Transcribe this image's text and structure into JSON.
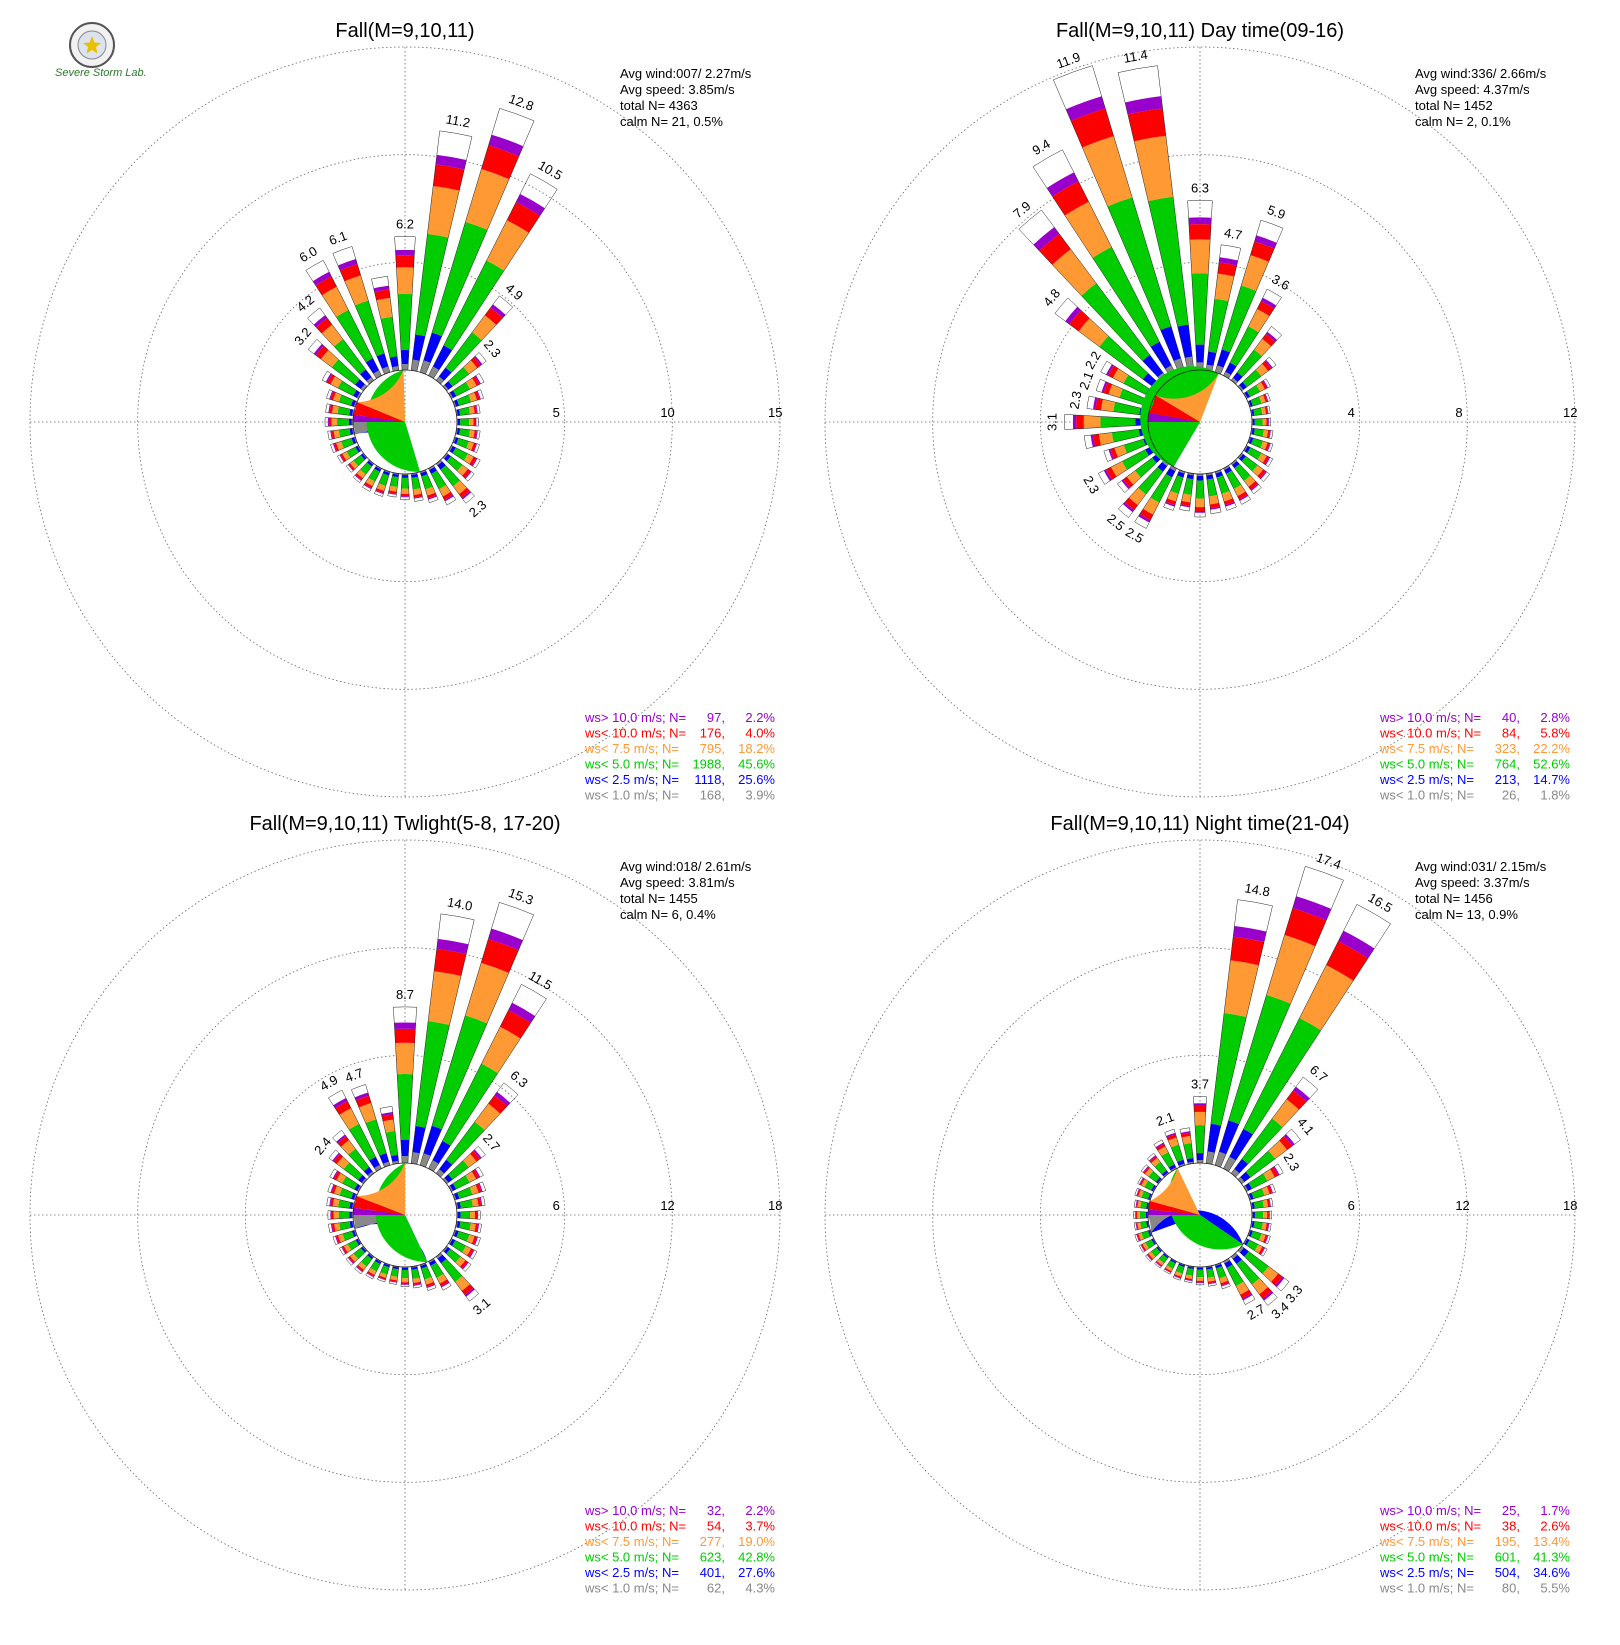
{
  "colors": {
    "gt10": "#9900cc",
    "lt10": "#ff0000",
    "lt7_5": "#ff9933",
    "lt5": "#00cc00",
    "lt2_5": "#0000ff",
    "lt1": "#888888"
  },
  "logo": {
    "text": "Severe Storm Lab."
  },
  "chart_data": [
    {
      "type": "windrose",
      "title": "Fall(M=9,10,11)",
      "stats": {
        "avg_wind": "Avg wind:007/ 2.27m/s",
        "avg_speed": "Avg speed: 3.85m/s",
        "total": "total N=        4363",
        "calm": "calm N=      21,   0.5%"
      },
      "rings": [
        5,
        10,
        15
      ],
      "ring_labels": [
        "5",
        "10",
        "15"
      ],
      "pie": [
        3.9,
        25.6,
        45.6,
        18.2,
        4.0,
        2.2
      ],
      "dirs": [
        {
          "d": 0,
          "p": 6.2,
          "l": "6.2"
        },
        {
          "d": 10,
          "p": 11.2,
          "l": "11.2"
        },
        {
          "d": 20,
          "p": 12.8,
          "l": "12.8"
        },
        {
          "d": 30,
          "p": 10.5,
          "l": "10.5"
        },
        {
          "d": 40,
          "p": 4.9,
          "l": "4.9"
        },
        {
          "d": 50,
          "p": 2.3,
          "l": "2.3"
        },
        {
          "d": 60,
          "p": 1.7
        },
        {
          "d": 70,
          "p": 1.4
        },
        {
          "d": 80,
          "p": 1.1
        },
        {
          "d": 90,
          "p": 1.0
        },
        {
          "d": 100,
          "p": 1.1
        },
        {
          "d": 110,
          "p": 1.2
        },
        {
          "d": 120,
          "p": 1.5
        },
        {
          "d": 130,
          "p": 1.6
        },
        {
          "d": 140,
          "p": 2.3,
          "l": "2.3"
        },
        {
          "d": 150,
          "p": 1.9
        },
        {
          "d": 160,
          "p": 1.5
        },
        {
          "d": 170,
          "p": 1.3
        },
        {
          "d": 180,
          "p": 1.2
        },
        {
          "d": 190,
          "p": 1.1
        },
        {
          "d": 200,
          "p": 1.2
        },
        {
          "d": 210,
          "p": 1.2
        },
        {
          "d": 220,
          "p": 1.1
        },
        {
          "d": 230,
          "p": 1.0
        },
        {
          "d": 240,
          "p": 1.1
        },
        {
          "d": 250,
          "p": 1.2
        },
        {
          "d": 260,
          "p": 1.2
        },
        {
          "d": 270,
          "p": 1.3
        },
        {
          "d": 280,
          "p": 1.3
        },
        {
          "d": 290,
          "p": 1.4
        },
        {
          "d": 300,
          "p": 1.9
        },
        {
          "d": 310,
          "p": 3.2,
          "l": "3.2"
        },
        {
          "d": 320,
          "p": 4.2,
          "l": "4.2"
        },
        {
          "d": 330,
          "p": 6.0,
          "l": "6.0"
        },
        {
          "d": 340,
          "p": 6.1,
          "l": "6.1"
        },
        {
          "d": 350,
          "p": 4.4
        }
      ],
      "legend": [
        {
          "label": "ws> 10.0 m/s; N=",
          "n": "97",
          "pct": "2.2%",
          "color_key": "gt10"
        },
        {
          "label": "ws< 10.0 m/s; N=",
          "n": "176",
          "pct": "4.0%",
          "color_key": "lt10"
        },
        {
          "label": "ws<  7.5 m/s; N=",
          "n": "795",
          "pct": "18.2%",
          "color_key": "lt7_5"
        },
        {
          "label": "ws<  5.0 m/s; N=",
          "n": "1988",
          "pct": "45.6%",
          "color_key": "lt5"
        },
        {
          "label": "ws<  2.5 m/s; N=",
          "n": "1118",
          "pct": "25.6%",
          "color_key": "lt2_5"
        },
        {
          "label": "ws<  1.0 m/s; N=",
          "n": "168",
          "pct": "3.9%",
          "color_key": "lt1"
        }
      ]
    },
    {
      "type": "windrose",
      "title": "Fall(M=9,10,11) Day time(09-16)",
      "stats": {
        "avg_wind": "Avg wind:336/ 2.66m/s",
        "avg_speed": "Avg speed: 4.37m/s",
        "total": "total N=        1452",
        "calm": "calm N=       2,   0.1%"
      },
      "rings": [
        4,
        8,
        12
      ],
      "ring_labels": [
        "4",
        "8",
        "12"
      ],
      "pie": [
        1.8,
        14.7,
        52.6,
        22.2,
        5.8,
        2.8
      ],
      "dirs": [
        {
          "d": 0,
          "p": 6.3,
          "l": "6.3"
        },
        {
          "d": 10,
          "p": 4.7,
          "l": "4.7"
        },
        {
          "d": 20,
          "p": 5.9,
          "l": "5.9"
        },
        {
          "d": 30,
          "p": 3.6,
          "l": "3.6"
        },
        {
          "d": 40,
          "p": 2.5
        },
        {
          "d": 50,
          "p": 1.6
        },
        {
          "d": 60,
          "p": 1.0
        },
        {
          "d": 70,
          "p": 0.8
        },
        {
          "d": 80,
          "p": 0.7
        },
        {
          "d": 90,
          "p": 0.7
        },
        {
          "d": 100,
          "p": 0.8
        },
        {
          "d": 110,
          "p": 0.9
        },
        {
          "d": 120,
          "p": 1.1
        },
        {
          "d": 130,
          "p": 1.3
        },
        {
          "d": 140,
          "p": 1.4
        },
        {
          "d": 150,
          "p": 1.5
        },
        {
          "d": 160,
          "p": 1.5
        },
        {
          "d": 170,
          "p": 1.5
        },
        {
          "d": 180,
          "p": 1.6
        },
        {
          "d": 190,
          "p": 1.4
        },
        {
          "d": 200,
          "p": 1.5
        },
        {
          "d": 210,
          "p": 2.5,
          "l": "2.5"
        },
        {
          "d": 220,
          "p": 2.5,
          "l": "2.5"
        },
        {
          "d": 230,
          "p": 1.9
        },
        {
          "d": 240,
          "p": 2.3,
          "l": "2.3"
        },
        {
          "d": 250,
          "p": 1.8
        },
        {
          "d": 260,
          "p": 2.4
        },
        {
          "d": 270,
          "p": 3.1,
          "l": "3.1"
        },
        {
          "d": 280,
          "p": 2.3,
          "l": "2.3"
        },
        {
          "d": 290,
          "p": 2.1,
          "l": "2.1"
        },
        {
          "d": 300,
          "p": 2.2,
          "l": "2.2"
        },
        {
          "d": 310,
          "p": 4.8,
          "l": "4.8"
        },
        {
          "d": 320,
          "p": 7.9,
          "l": "7.9"
        },
        {
          "d": 330,
          "p": 9.4,
          "l": "9.4"
        },
        {
          "d": 340,
          "p": 11.9,
          "l": "11.9"
        },
        {
          "d": 350,
          "p": 11.4,
          "l": "11.4"
        }
      ],
      "legend": [
        {
          "label": "ws> 10.0 m/s; N=",
          "n": "40",
          "pct": "2.8%",
          "color_key": "gt10"
        },
        {
          "label": "ws< 10.0 m/s; N=",
          "n": "84",
          "pct": "5.8%",
          "color_key": "lt10"
        },
        {
          "label": "ws<  7.5 m/s; N=",
          "n": "323",
          "pct": "22.2%",
          "color_key": "lt7_5"
        },
        {
          "label": "ws<  5.0 m/s; N=",
          "n": "764",
          "pct": "52.6%",
          "color_key": "lt5"
        },
        {
          "label": "ws<  2.5 m/s; N=",
          "n": "213",
          "pct": "14.7%",
          "color_key": "lt2_5"
        },
        {
          "label": "ws<  1.0 m/s; N=",
          "n": "26",
          "pct": "1.8%",
          "color_key": "lt1"
        }
      ]
    },
    {
      "type": "windrose",
      "title": "Fall(M=9,10,11) Twlight(5-8, 17-20)",
      "stats": {
        "avg_wind": "Avg wind:018/ 2.61m/s",
        "avg_speed": "Avg speed: 3.81m/s",
        "total": "total N=        1455",
        "calm": "calm N=       6,   0.4%"
      },
      "rings": [
        6,
        12,
        18
      ],
      "ring_labels": [
        "6",
        "12",
        "18"
      ],
      "pie": [
        4.3,
        27.6,
        42.8,
        19.0,
        3.7,
        2.2
      ],
      "dirs": [
        {
          "d": 0,
          "p": 8.7,
          "l": "8.7"
        },
        {
          "d": 10,
          "p": 14.0,
          "l": "14.0"
        },
        {
          "d": 20,
          "p": 15.3,
          "l": "15.3"
        },
        {
          "d": 30,
          "p": 11.5,
          "l": "11.5"
        },
        {
          "d": 40,
          "p": 6.3,
          "l": "6.3"
        },
        {
          "d": 50,
          "p": 2.7,
          "l": "2.7"
        },
        {
          "d": 60,
          "p": 2.0
        },
        {
          "d": 70,
          "p": 1.8
        },
        {
          "d": 80,
          "p": 1.6
        },
        {
          "d": 90,
          "p": 1.3
        },
        {
          "d": 100,
          "p": 1.4
        },
        {
          "d": 110,
          "p": 1.5
        },
        {
          "d": 120,
          "p": 1.6
        },
        {
          "d": 130,
          "p": 1.7
        },
        {
          "d": 140,
          "p": 3.1,
          "l": "3.1"
        },
        {
          "d": 150,
          "p": 1.8
        },
        {
          "d": 160,
          "p": 1.5
        },
        {
          "d": 170,
          "p": 1.2
        },
        {
          "d": 180,
          "p": 1.1
        },
        {
          "d": 190,
          "p": 1.0
        },
        {
          "d": 200,
          "p": 1.0
        },
        {
          "d": 210,
          "p": 1.1
        },
        {
          "d": 220,
          "p": 1.2
        },
        {
          "d": 230,
          "p": 1.2
        },
        {
          "d": 240,
          "p": 1.2
        },
        {
          "d": 250,
          "p": 1.3
        },
        {
          "d": 260,
          "p": 1.4
        },
        {
          "d": 270,
          "p": 1.4
        },
        {
          "d": 280,
          "p": 1.5
        },
        {
          "d": 290,
          "p": 1.6
        },
        {
          "d": 300,
          "p": 1.8
        },
        {
          "d": 310,
          "p": 2.4,
          "l": "2.4"
        },
        {
          "d": 320,
          "p": 3.0
        },
        {
          "d": 330,
          "p": 4.9,
          "l": "4.9"
        },
        {
          "d": 340,
          "p": 4.7,
          "l": "4.7"
        },
        {
          "d": 350,
          "p": 3.2
        }
      ],
      "legend": [
        {
          "label": "ws> 10.0 m/s; N=",
          "n": "32",
          "pct": "2.2%",
          "color_key": "gt10"
        },
        {
          "label": "ws< 10.0 m/s; N=",
          "n": "54",
          "pct": "3.7%",
          "color_key": "lt10"
        },
        {
          "label": "ws<  7.5 m/s; N=",
          "n": "277",
          "pct": "19.0%",
          "color_key": "lt7_5"
        },
        {
          "label": "ws<  5.0 m/s; N=",
          "n": "623",
          "pct": "42.8%",
          "color_key": "lt5"
        },
        {
          "label": "ws<  2.5 m/s; N=",
          "n": "401",
          "pct": "27.6%",
          "color_key": "lt2_5"
        },
        {
          "label": "ws<  1.0 m/s; N=",
          "n": "62",
          "pct": "4.3%",
          "color_key": "lt1"
        }
      ]
    },
    {
      "type": "windrose",
      "title": "Fall(M=9,10,11) Night time(21-04)",
      "stats": {
        "avg_wind": "Avg wind:031/ 2.15m/s",
        "avg_speed": "Avg speed: 3.37m/s",
        "total": "total N=        1456",
        "calm": "calm N=      13,   0.9%"
      },
      "rings": [
        6,
        12,
        18
      ],
      "ring_labels": [
        "6",
        "12",
        "18"
      ],
      "pie": [
        5.5,
        34.6,
        41.3,
        13.4,
        2.6,
        1.7
      ],
      "dirs": [
        {
          "d": 0,
          "p": 3.7,
          "l": "3.7"
        },
        {
          "d": 10,
          "p": 14.8,
          "l": "14.8"
        },
        {
          "d": 20,
          "p": 17.4,
          "l": "17.4"
        },
        {
          "d": 30,
          "p": 16.5,
          "l": "16.5"
        },
        {
          "d": 40,
          "p": 6.7,
          "l": "6.7"
        },
        {
          "d": 50,
          "p": 4.1,
          "l": "4.1"
        },
        {
          "d": 60,
          "p": 2.3,
          "l": "2.3"
        },
        {
          "d": 70,
          "p": 1.5
        },
        {
          "d": 80,
          "p": 1.2
        },
        {
          "d": 90,
          "p": 1.1
        },
        {
          "d": 100,
          "p": 1.1
        },
        {
          "d": 110,
          "p": 1.2
        },
        {
          "d": 120,
          "p": 1.3
        },
        {
          "d": 130,
          "p": 3.3,
          "l": "3.3"
        },
        {
          "d": 140,
          "p": 3.4,
          "l": "3.4"
        },
        {
          "d": 150,
          "p": 2.7,
          "l": "2.7"
        },
        {
          "d": 160,
          "p": 1.4
        },
        {
          "d": 170,
          "p": 1.1
        },
        {
          "d": 180,
          "p": 1.0
        },
        {
          "d": 190,
          "p": 0.9
        },
        {
          "d": 200,
          "p": 0.9
        },
        {
          "d": 210,
          "p": 0.8
        },
        {
          "d": 220,
          "p": 0.8
        },
        {
          "d": 230,
          "p": 0.9
        },
        {
          "d": 240,
          "p": 0.9
        },
        {
          "d": 250,
          "p": 0.9
        },
        {
          "d": 260,
          "p": 0.8
        },
        {
          "d": 270,
          "p": 0.8
        },
        {
          "d": 280,
          "p": 0.8
        },
        {
          "d": 290,
          "p": 0.9
        },
        {
          "d": 300,
          "p": 1.0
        },
        {
          "d": 310,
          "p": 1.2
        },
        {
          "d": 320,
          "p": 1.4
        },
        {
          "d": 330,
          "p": 1.8
        },
        {
          "d": 340,
          "p": 2.1,
          "l": "2.1"
        },
        {
          "d": 350,
          "p": 2.0
        }
      ],
      "legend": [
        {
          "label": "ws> 10.0 m/s; N=",
          "n": "25",
          "pct": "1.7%",
          "color_key": "gt10"
        },
        {
          "label": "ws< 10.0 m/s; N=",
          "n": "38",
          "pct": "2.6%",
          "color_key": "lt10"
        },
        {
          "label": "ws<  7.5 m/s; N=",
          "n": "195",
          "pct": "13.4%",
          "color_key": "lt7_5"
        },
        {
          "label": "ws<  5.0 m/s; N=",
          "n": "601",
          "pct": "41.3%",
          "color_key": "lt5"
        },
        {
          "label": "ws<  2.5 m/s; N=",
          "n": "504",
          "pct": "34.6%",
          "color_key": "lt2_5"
        },
        {
          "label": "ws<  1.0 m/s; N=",
          "n": "80",
          "pct": "5.5%",
          "color_key": "lt1"
        }
      ]
    }
  ]
}
